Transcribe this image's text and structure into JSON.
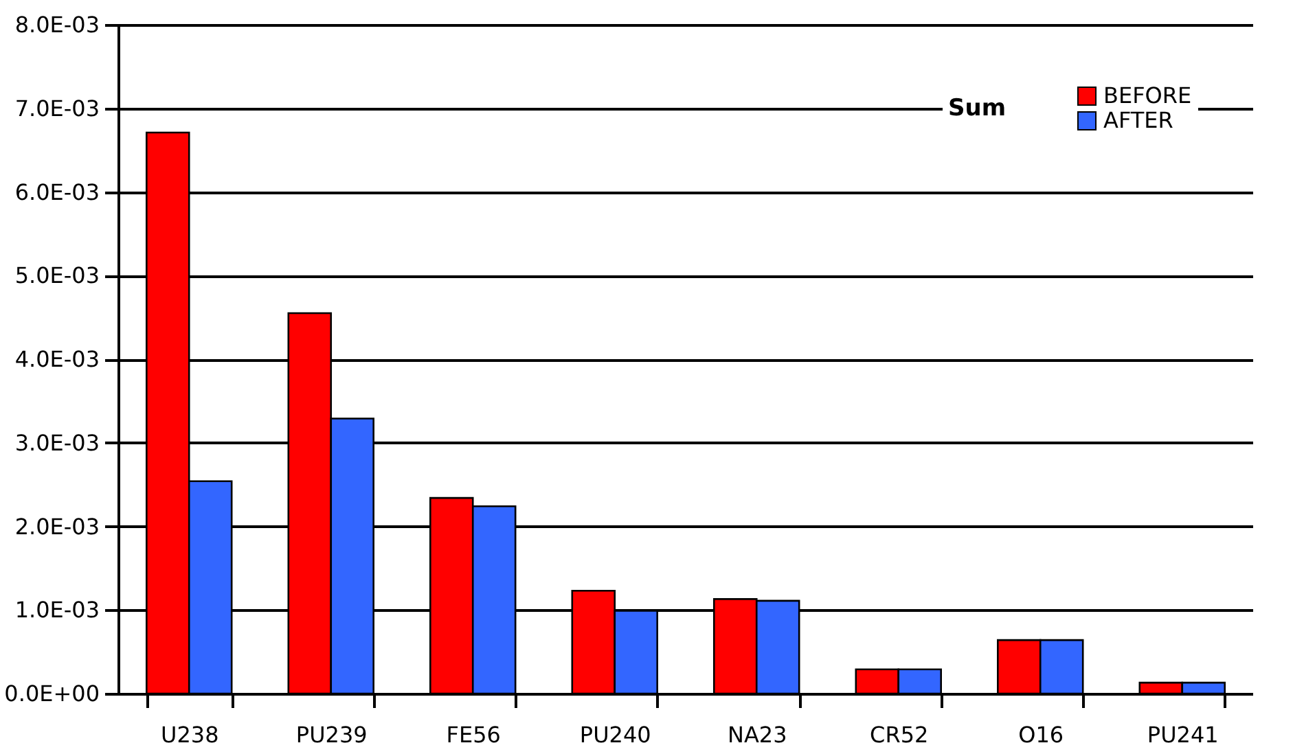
{
  "chart_data": {
    "type": "bar",
    "legend_title": "Sum",
    "categories": [
      "U238",
      "PU239",
      "FE56",
      "PU240",
      "NA23",
      "CR52",
      "O16",
      "PU241"
    ],
    "series": [
      {
        "name": "BEFORE",
        "color": "#ff0000",
        "values": [
          0.00671,
          0.00455,
          0.00234,
          0.00123,
          0.00113,
          0.00029,
          0.00064,
          0.00013
        ]
      },
      {
        "name": "AFTER",
        "color": "#3366ff",
        "values": [
          0.00254,
          0.00329,
          0.00224,
          0.00099,
          0.00111,
          0.00029,
          0.00064,
          0.00013
        ]
      }
    ],
    "ylim": [
      0,
      0.008
    ],
    "yticks": [
      {
        "value": 0,
        "label": "0.0E+00"
      },
      {
        "value": 0.001,
        "label": "1.0E-03"
      },
      {
        "value": 0.002,
        "label": "2.0E-03"
      },
      {
        "value": 0.003,
        "label": "3.0E-03"
      },
      {
        "value": 0.004,
        "label": "4.0E-03"
      },
      {
        "value": 0.005,
        "label": "5.0E-03"
      },
      {
        "value": 0.006,
        "label": "6.0E-03"
      },
      {
        "value": 0.007,
        "label": "7.0E-03"
      },
      {
        "value": 0.008,
        "label": "8.0E-03"
      }
    ],
    "grid": "y",
    "legend": "top right"
  }
}
